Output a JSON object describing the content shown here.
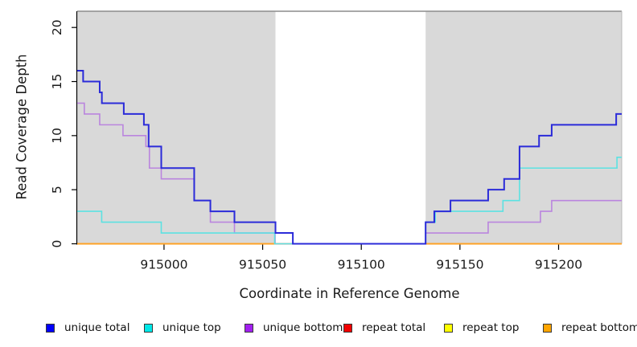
{
  "chart_data": {
    "type": "line",
    "style": "step-after",
    "title": "",
    "xlabel": "Coordinate in Reference Genome",
    "ylabel": "Read Coverage Depth",
    "xlim": [
      914956,
      915232
    ],
    "ylim": [
      0,
      21.5
    ],
    "x_ticks": [
      915000,
      915050,
      915100,
      915150,
      915200
    ],
    "y_ticks": [
      0,
      5,
      10,
      15,
      20
    ],
    "grid": false,
    "legend_position": "bottom",
    "background": "#ffffff",
    "panel_border_color": "#8c8c8c",
    "axis_color": "#000000",
    "shaded_regions": [
      {
        "x0": 914956,
        "x1": 915056.5,
        "color": "#d9d9d9"
      },
      {
        "x0": 915132.6,
        "x1": 915232,
        "color": "#d9d9d9"
      }
    ],
    "draw_order": [
      3,
      4,
      5,
      2,
      1,
      0
    ],
    "series": [
      {
        "name": "unique total",
        "line_color": "#2b2bd9",
        "legend_color": "#0000fa",
        "width": 2,
        "steps": [
          [
            914956,
            16
          ],
          [
            914959,
            15
          ],
          [
            914967.4,
            14
          ],
          [
            914968.5,
            13
          ],
          [
            914979.6,
            12
          ],
          [
            914989.8,
            11
          ],
          [
            914992.2,
            9
          ],
          [
            914998.6,
            7
          ],
          [
            915015.3,
            4
          ],
          [
            915023.5,
            3
          ],
          [
            915035.7,
            2
          ],
          [
            915056.5,
            1
          ],
          [
            915065.3,
            0
          ],
          [
            915132.6,
            2
          ],
          [
            915137,
            3
          ],
          [
            915145.2,
            4
          ],
          [
            915164.3,
            5
          ],
          [
            915172.4,
            6
          ],
          [
            915180.2,
            9
          ],
          [
            915190.1,
            10
          ],
          [
            915196.5,
            11
          ],
          [
            915229.2,
            12
          ],
          [
            915232,
            12
          ]
        ]
      },
      {
        "name": "unique top",
        "line_color": "#5ce2e2",
        "legend_color": "#00e8e8",
        "width": 1.6,
        "steps": [
          [
            914956,
            3
          ],
          [
            914968.4,
            2
          ],
          [
            914998.6,
            1
          ],
          [
            915056.1,
            0
          ],
          [
            915132.6,
            2
          ],
          [
            915137.5,
            3
          ],
          [
            915171.8,
            4
          ],
          [
            915180.2,
            7
          ],
          [
            915229.6,
            8
          ],
          [
            915232,
            8
          ]
        ]
      },
      {
        "name": "unique bottom",
        "line_color": "#ba85de",
        "legend_color": "#a21ff0",
        "width": 1.6,
        "steps": [
          [
            914956,
            13
          ],
          [
            914959.6,
            12
          ],
          [
            914967.4,
            11
          ],
          [
            914979.2,
            10
          ],
          [
            914990.8,
            9
          ],
          [
            914992.6,
            7
          ],
          [
            914998.6,
            6
          ],
          [
            915015.3,
            4
          ],
          [
            915023.5,
            2
          ],
          [
            915035.7,
            1
          ],
          [
            915056.3,
            0
          ],
          [
            915132.6,
            1
          ],
          [
            915164.3,
            2
          ],
          [
            915190.8,
            3
          ],
          [
            915196.5,
            4
          ],
          [
            915232,
            4
          ]
        ]
      },
      {
        "name": "repeat total",
        "line_color": "#dd0000",
        "legend_color": "#f00000",
        "width": 1.6,
        "steps": [
          [
            914956,
            0
          ],
          [
            915232,
            0
          ]
        ]
      },
      {
        "name": "repeat top",
        "line_color": "#eeee00",
        "legend_color": "#ffff00",
        "width": 1.6,
        "steps": [
          [
            914956,
            0
          ],
          [
            915232,
            0
          ]
        ]
      },
      {
        "name": "repeat bottom",
        "line_color": "#ffa226",
        "legend_color": "#ffa500",
        "width": 2,
        "steps": [
          [
            914956,
            0
          ],
          [
            915232,
            0
          ]
        ]
      }
    ]
  }
}
